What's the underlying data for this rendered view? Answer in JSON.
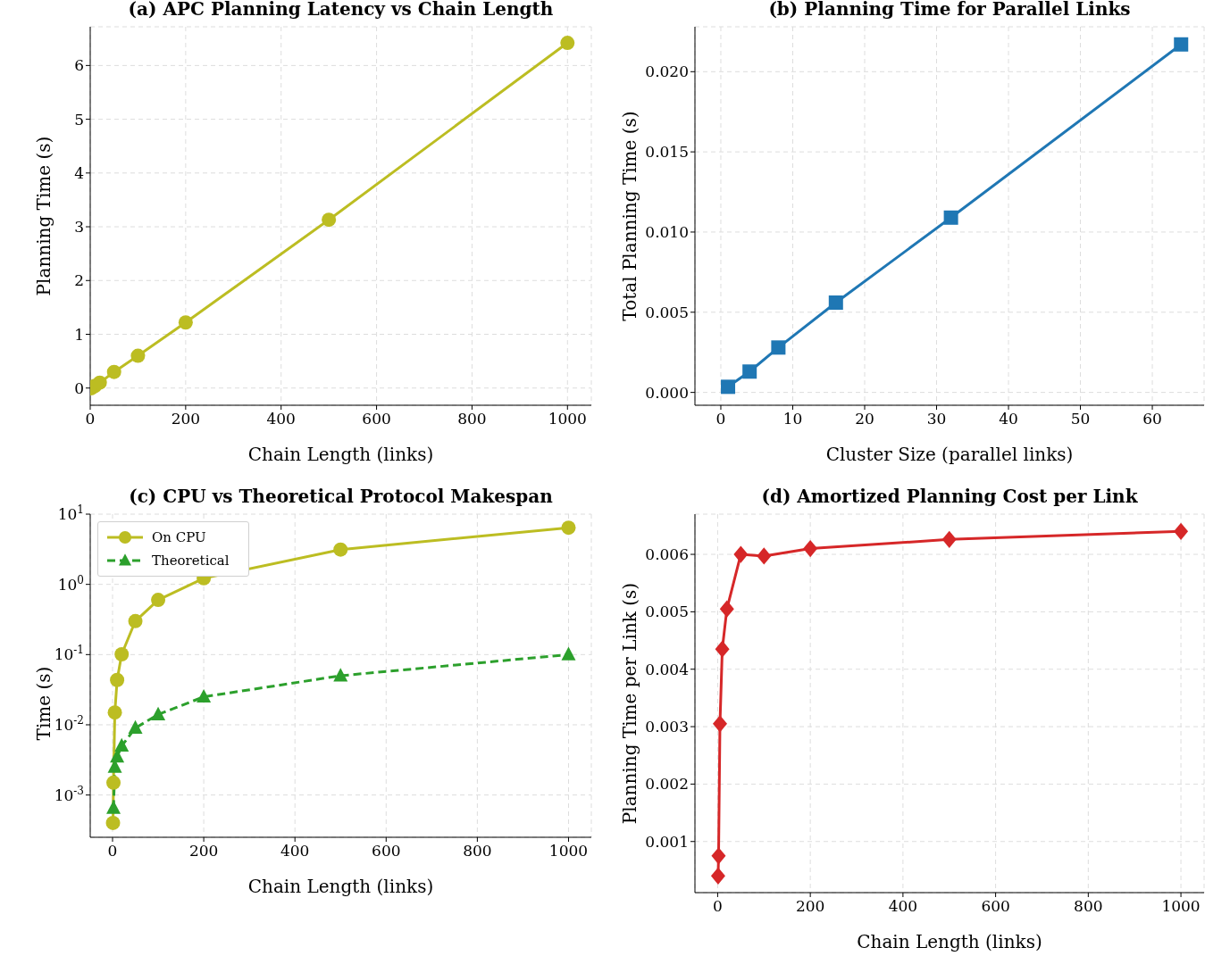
{
  "chart_data": [
    {
      "type": "line",
      "title": "(a) APC Planning Latency vs Chain Length",
      "xlabel": "Chain Length (links)",
      "ylabel": "Planning Time (s)",
      "x": [
        1,
        2,
        5,
        10,
        20,
        50,
        100,
        200,
        500,
        1000
      ],
      "marker": "circle",
      "line_style": "solid",
      "grid": true,
      "series": [
        {
          "color": "#bcbd22",
          "values": [
            0.0,
            0.0,
            0.02,
            0.04,
            0.1,
            0.3,
            0.6,
            1.22,
            3.13,
            6.42
          ]
        }
      ],
      "xlim": [
        0,
        1050
      ],
      "xticks": [
        0,
        200,
        400,
        600,
        800,
        1000
      ],
      "ylim": [
        -0.32,
        6.72
      ],
      "yticks": [
        0,
        1,
        2,
        3,
        4,
        5,
        6
      ]
    },
    {
      "type": "line",
      "title": "(b) Planning Time for Parallel Links",
      "xlabel": "Cluster Size (parallel links)",
      "ylabel": "Total Planning Time (s)",
      "x": [
        1,
        4,
        8,
        16,
        32,
        64
      ],
      "marker": "square",
      "line_style": "solid",
      "grid": true,
      "series": [
        {
          "color": "#1f77b4",
          "values": [
            0.00035,
            0.0013,
            0.0028,
            0.0056,
            0.0109,
            0.0217
          ]
        }
      ],
      "xlim": [
        -3.6,
        67.2
      ],
      "xticks": [
        0,
        10,
        20,
        30,
        40,
        50,
        60
      ],
      "ylim": [
        -0.0008,
        0.0228
      ],
      "yticks": [
        {
          "value": 0,
          "label": "0.000"
        },
        {
          "value": 0.005,
          "label": "0.005"
        },
        {
          "value": 0.01,
          "label": "0.010"
        },
        {
          "value": 0.015,
          "label": "0.015"
        },
        {
          "value": 0.02,
          "label": "0.020"
        }
      ]
    },
    {
      "type": "line",
      "title": "(c) CPU vs Theoretical Protocol Makespan",
      "xlabel": "Chain Length (links)",
      "ylabel": "Time (s)",
      "x": [
        1,
        2,
        5,
        10,
        20,
        50,
        100,
        200,
        500,
        1000
      ],
      "log": "y",
      "grid": true,
      "legend": "top left",
      "series": [
        {
          "name": "On CPU",
          "color": "#bcbd22",
          "marker": "circle",
          "line_style": "solid",
          "values": [
            0.0004,
            0.0015,
            0.015,
            0.0435,
            0.101,
            0.3,
            0.6,
            1.22,
            3.13,
            6.42
          ]
        },
        {
          "name": "Theoretical",
          "color": "#2ca02c",
          "marker": "triangle",
          "line_style": "dashed",
          "values": [
            null,
            0.00065,
            0.0025,
            0.0035,
            0.005,
            0.009,
            0.014,
            0.025,
            0.05,
            0.1
          ]
        }
      ],
      "xlim": [
        -49,
        1050
      ],
      "xticks": [
        0,
        200,
        400,
        600,
        800,
        1000
      ],
      "ylim": [
        0.00025,
        10
      ],
      "yticks": [
        {
          "value": 0.001,
          "label": "10$^{-3}$"
        },
        {
          "value": 0.01,
          "label": "10$^{-2}$"
        },
        {
          "value": 0.1,
          "label": "10$^{-1}$"
        },
        {
          "value": 1,
          "label": "10$^{0}$"
        },
        {
          "value": 10,
          "label": "10$^{1}$"
        }
      ]
    },
    {
      "type": "line",
      "title": "(d) Amortized Planning Cost per Link",
      "xlabel": "Chain Length (links)",
      "ylabel": "Planning Time per Link (s)",
      "x": [
        1,
        2,
        5,
        10,
        20,
        50,
        100,
        200,
        500,
        1000
      ],
      "marker": "diamond",
      "line_style": "solid",
      "grid": true,
      "series": [
        {
          "color": "#d62728",
          "values": [
            0.0004,
            0.00075,
            0.00305,
            0.00435,
            0.00505,
            0.006,
            0.00597,
            0.0061,
            0.00626,
            0.0064
          ]
        }
      ],
      "xlim": [
        -49,
        1050
      ],
      "xticks": [
        0,
        200,
        400,
        600,
        800,
        1000
      ],
      "ylim": [
        0.00011,
        0.0067
      ],
      "yticks": [
        0.001,
        0.002,
        0.003,
        0.004,
        0.005,
        0.006
      ]
    }
  ]
}
